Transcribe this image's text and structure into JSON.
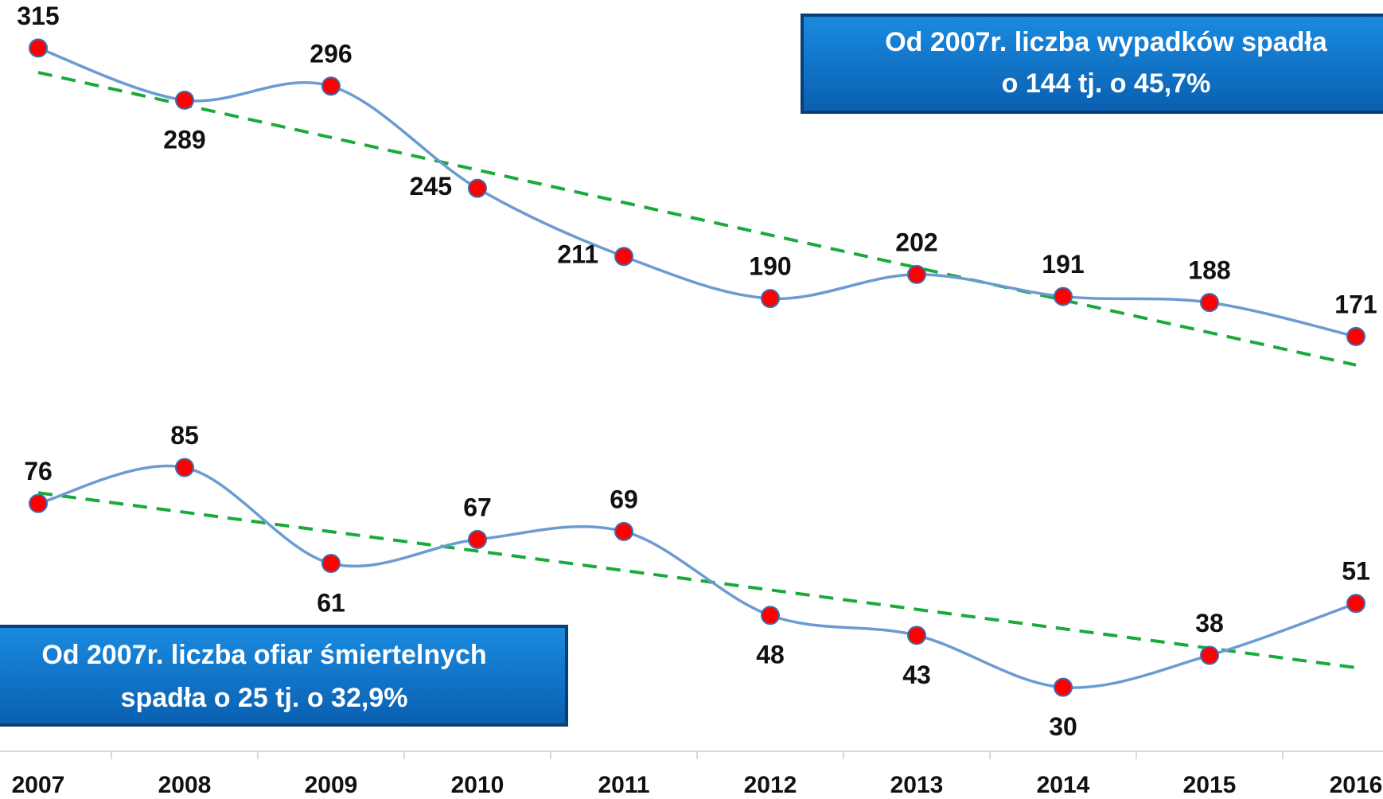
{
  "chart_data": {
    "type": "line",
    "categories": [
      "2007",
      "2008",
      "2009",
      "2010",
      "2011",
      "2012",
      "2013",
      "2014",
      "2015",
      "2016"
    ],
    "series": [
      {
        "values": [
          315,
          289,
          296,
          245,
          211,
          190,
          202,
          191,
          188,
          171
        ],
        "color": "#6a9bd1",
        "marker_color": "#ff0000"
      },
      {
        "values": [
          76,
          85,
          61,
          67,
          69,
          48,
          43,
          30,
          38,
          51
        ],
        "color": "#6a9bd1",
        "marker_color": "#ff0000",
        "axis": "y2"
      }
    ],
    "ylim": [
      -36,
      339
    ],
    "y2lim": [
      14,
      202
    ],
    "trendline": true,
    "trendline_color": "#1aaa3c",
    "annotations": [
      {
        "lines": [
          "Od 2007r. liczba wypadków spadła",
          "o 144 tj. o 45,7%"
        ]
      },
      {
        "lines": [
          "Od 2007r. liczba ofiar śmiertelnych",
          "spadła o 25 tj. o 32,9%"
        ]
      }
    ]
  }
}
